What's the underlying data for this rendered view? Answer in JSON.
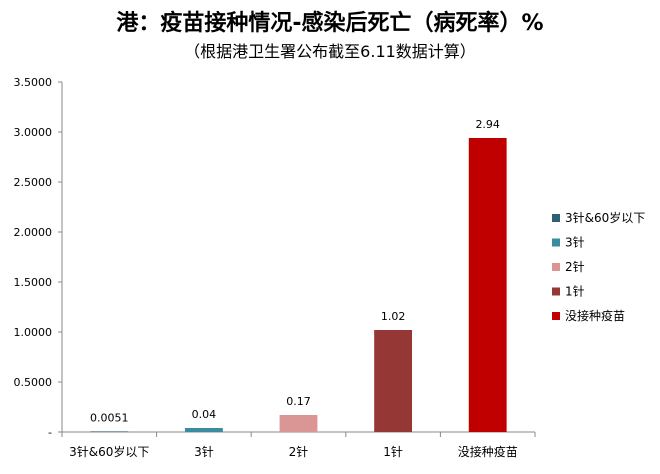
{
  "chart_data": {
    "type": "bar",
    "title": "港：疫苗接种情况-感染后死亡（病死率）%",
    "subtitle": "（根据港卫生署公布截至6.11数据计算）",
    "categories": [
      "3针&60岁以下",
      "3针",
      "2针",
      "1针",
      "没接种疫苗"
    ],
    "values": [
      0.0051,
      0.04,
      0.17,
      1.02,
      2.94
    ],
    "data_labels": [
      "0.0051",
      "0.04",
      "0.17",
      "1.02",
      "2.94"
    ],
    "colors": [
      "#2e5f73",
      "#3a8c9e",
      "#d99694",
      "#953735",
      "#c00000"
    ],
    "ylim": [
      0,
      3.5
    ],
    "y_ticks": [
      "-",
      "0.5000",
      "1.0000",
      "1.5000",
      "2.0000",
      "2.5000",
      "3.0000",
      "3.5000"
    ],
    "grid": false,
    "legend_position": "right",
    "legend": [
      "3针&60岁以下",
      "3针",
      "2针",
      "1针",
      "没接种疫苗"
    ]
  }
}
